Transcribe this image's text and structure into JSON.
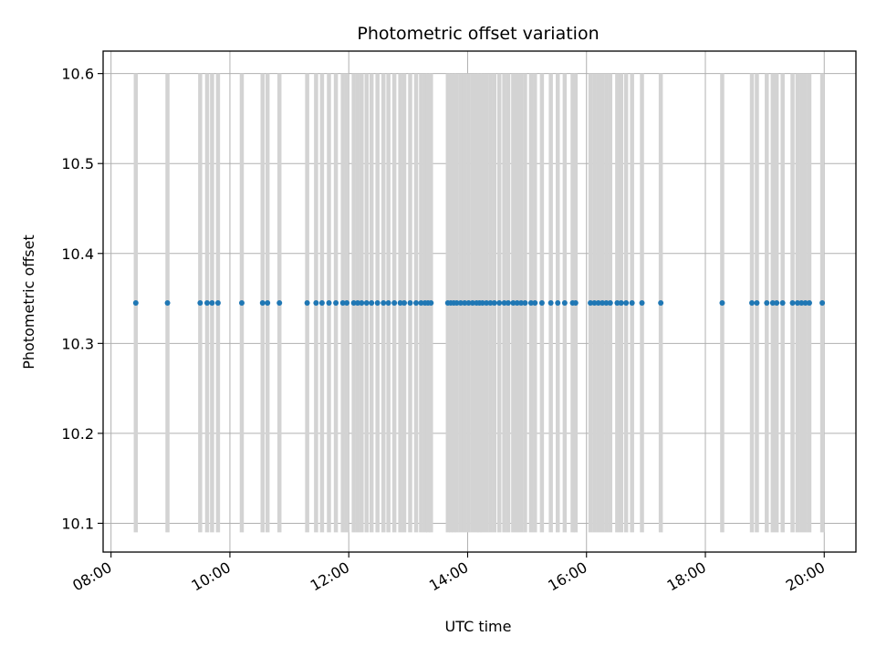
{
  "chart_data": {
    "type": "scatter",
    "title": "Photometric offset variation",
    "xlabel": "UTC time",
    "ylabel": "Photometric offset",
    "xlim": [
      "07:52",
      "20:32"
    ],
    "ylim": [
      10.068,
      10.625
    ],
    "x_ticks": [
      "08:00",
      "10:00",
      "12:00",
      "14:00",
      "16:00",
      "18:00",
      "20:00"
    ],
    "y_ticks": [
      "10.1",
      "10.2",
      "10.3",
      "10.4",
      "10.5",
      "10.6"
    ],
    "grid": true,
    "legend": "none",
    "colors": {
      "points": "#1f77b4",
      "bars": "#d3d3d3",
      "grid": "#b0b0b0"
    },
    "errorbars": {
      "low": 10.09,
      "high": 10.6
    },
    "series": [
      {
        "y": 10.345,
        "x": [
          "08:25",
          "08:57",
          "09:30",
          "09:37",
          "09:42",
          "09:48",
          "10:12",
          "10:33",
          "10:38",
          "10:50",
          "11:18",
          "11:27",
          "11:33",
          "11:40",
          "11:47",
          "11:54",
          "11:58",
          "12:05",
          "12:09",
          "12:13",
          "12:18",
          "12:23",
          "12:29",
          "12:35",
          "12:40",
          "12:46",
          "12:52",
          "12:56",
          "13:02",
          "13:08",
          "13:13",
          "13:17",
          "13:20",
          "13:23",
          "13:40",
          "13:43",
          "13:46",
          "13:49",
          "13:53",
          "13:57",
          "14:01",
          "14:05",
          "14:09",
          "14:12",
          "14:15",
          "14:19",
          "14:23",
          "14:27",
          "14:32",
          "14:37",
          "14:41",
          "14:46",
          "14:50",
          "14:54",
          "14:58",
          "15:04",
          "15:08",
          "15:15",
          "15:24",
          "15:31",
          "15:38",
          "15:46",
          "15:49",
          "16:04",
          "16:08",
          "16:12",
          "16:16",
          "16:20",
          "16:24",
          "16:31",
          "16:35",
          "16:40",
          "16:46",
          "16:56",
          "17:15",
          "18:17",
          "18:47",
          "18:52",
          "19:02",
          "19:08",
          "19:12",
          "19:18",
          "19:28",
          "19:33",
          "19:37",
          "19:41",
          "19:45",
          "19:58"
        ]
      }
    ]
  }
}
